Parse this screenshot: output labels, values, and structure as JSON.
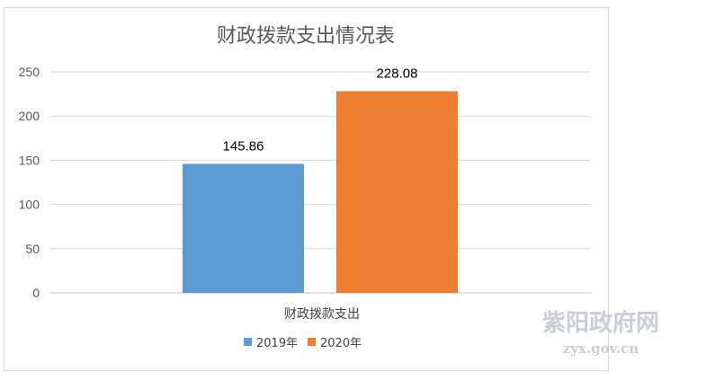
{
  "chart_data": {
    "type": "bar",
    "title": "财政拨款支出情况表",
    "categories": [
      "财政拨款支出"
    ],
    "series": [
      {
        "name": "2019年",
        "values": [
          145.86
        ],
        "color": "#5b9bd5",
        "label": "145.86"
      },
      {
        "name": "2020年",
        "values": [
          228.08
        ],
        "color": "#ed7d31",
        "label": "228.08"
      }
    ],
    "ylim": [
      0,
      250
    ],
    "yticks": [
      0,
      50,
      100,
      150,
      200,
      250
    ],
    "grid": true,
    "legend": "bottom"
  },
  "watermark": {
    "name": "紫阳政府网",
    "url": "zyx.gov.cn"
  }
}
